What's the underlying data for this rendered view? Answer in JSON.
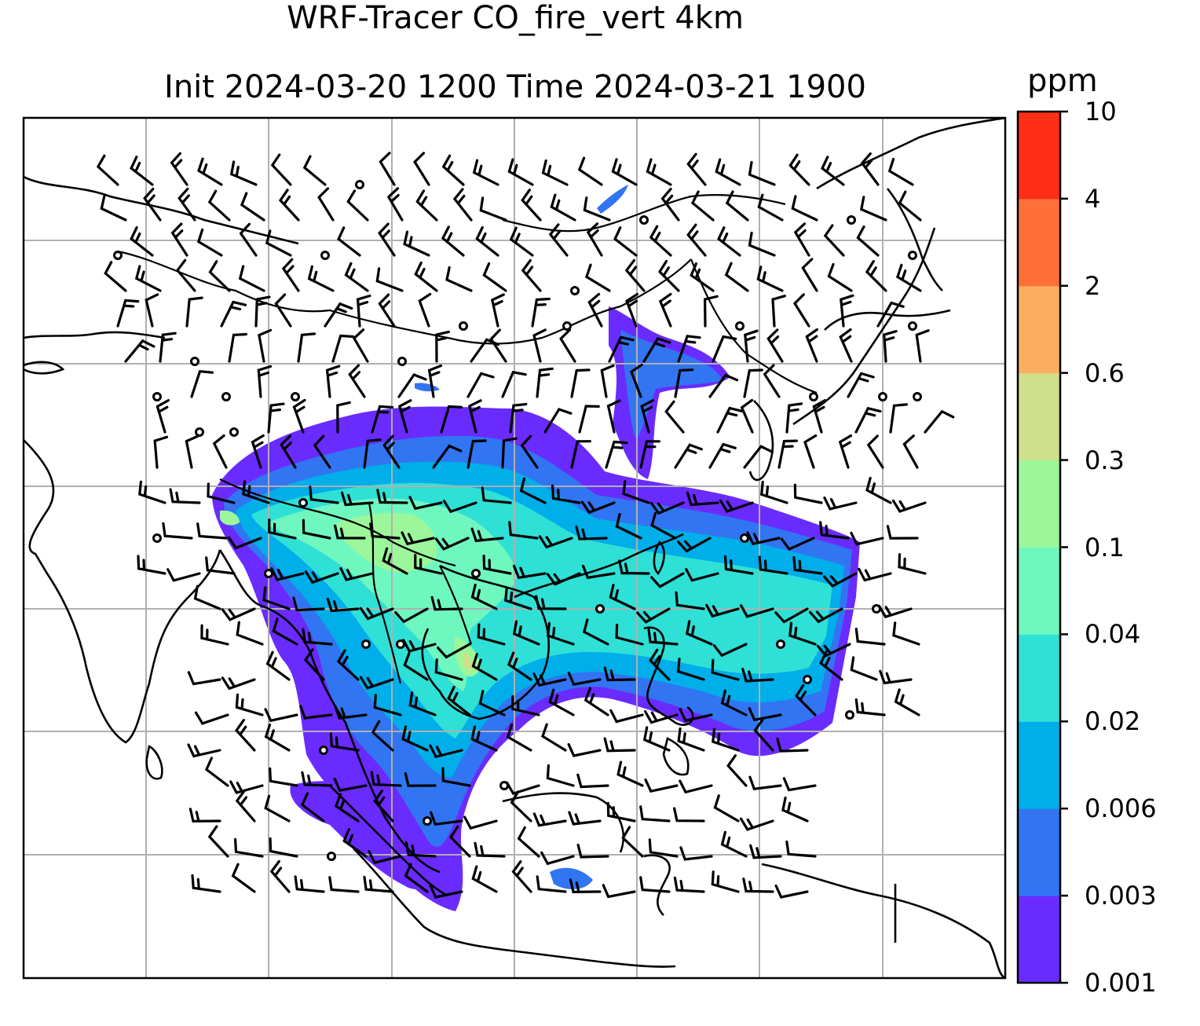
{
  "title": {
    "line1": "WRF-Tracer CO_fire_vert 4km",
    "line2": "Init 2024-03-20 1200 Time 2024-03-21 1900"
  },
  "colorbar": {
    "unit": "ppm",
    "ticks": [
      "0.001",
      "0.003",
      "0.006",
      "0.02",
      "0.04",
      "0.1",
      "0.3",
      "0.6",
      "2",
      "4",
      "10"
    ],
    "colors": [
      "#6a2bff",
      "#3175f2",
      "#00aee9",
      "#2fe0d6",
      "#6ff7c0",
      "#9cf79a",
      "#cfe08a",
      "#fcae60",
      "#ff7038",
      "#ff2e17"
    ]
  },
  "map": {
    "gridlines": true,
    "layers": [
      "coastlines",
      "country-borders",
      "co-tracer-concentration",
      "wind-barbs"
    ]
  }
}
